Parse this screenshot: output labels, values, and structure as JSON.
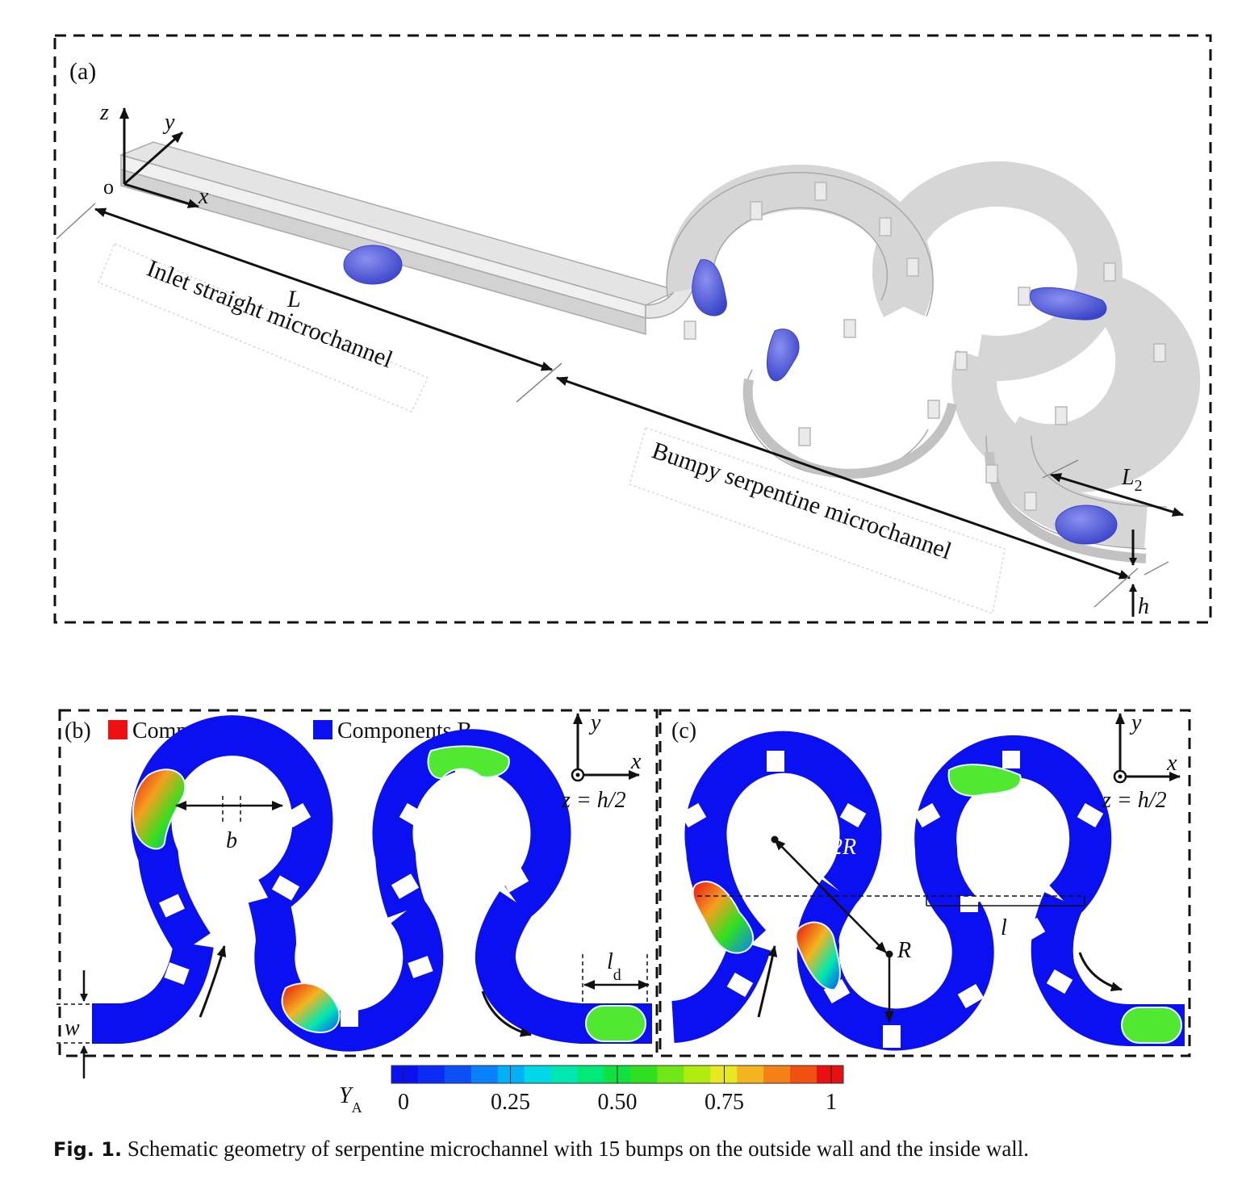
{
  "panel_a": {
    "label": "(a)",
    "axes": {
      "origin": "o",
      "x": "x",
      "y": "y",
      "z": "z"
    },
    "dim_L": "L",
    "dim_L2": "L",
    "dim_L2_sub": "2",
    "dim_h": "h",
    "label_inlet": "Inlet straight microchannel",
    "label_bumpy": "Bumpy serpentine microchannel"
  },
  "panel_b": {
    "label": "(b)",
    "legend_a": "Components A",
    "legend_b": "Components B",
    "legend_a_color": "#ee1111",
    "legend_b_color": "#0a10f0",
    "axis_x": "x",
    "axis_y": "y",
    "plane": "z = h/2",
    "dim_b": "b",
    "dim_w": "w",
    "dim_ld": "l",
    "dim_ld_sub": "d"
  },
  "panel_c": {
    "label": "(c)",
    "axis_x": "x",
    "axis_y": "y",
    "plane": "z = h/2",
    "dim_2R": "2R",
    "dim_R": "R",
    "dim_l": "l"
  },
  "colorbar": {
    "variable": "Y",
    "variable_sub": "A",
    "ticks": [
      "0",
      "0.25",
      "0.50",
      "0.75",
      "1"
    ],
    "colors": [
      "#0a10f0",
      "#0a2cf4",
      "#0a50f6",
      "#0a80fa",
      "#00b0f8",
      "#00d8e8",
      "#00e8b0",
      "#00e878",
      "#10e040",
      "#30e020",
      "#70e818",
      "#b0ec10",
      "#e8e820",
      "#f4b420",
      "#f48018",
      "#f05010",
      "#e81010"
    ]
  },
  "caption": {
    "label": "Fig. 1.",
    "text": "Schematic geometry of serpentine microchannel with 15 bumps on the outside wall and the inside wall."
  }
}
